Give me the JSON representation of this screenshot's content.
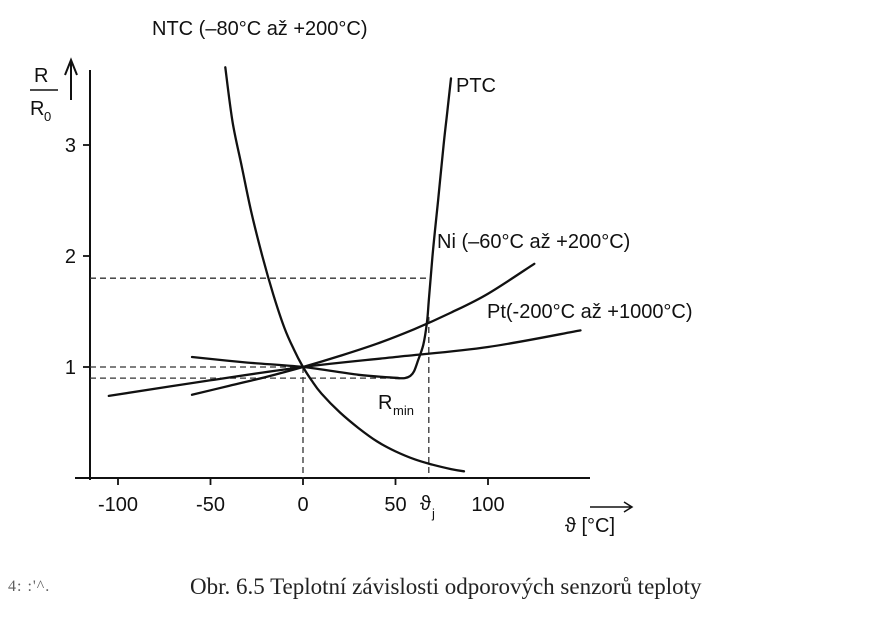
{
  "chart_data": {
    "type": "line",
    "xlabel": "ϑ [°C]",
    "ylabel_top": "R",
    "ylabel_bottom": "R",
    "ylabel_bottom_sub": "0",
    "xlim": [
      -115,
      150
    ],
    "ylim": [
      0,
      3.6
    ],
    "x_ticks": [
      -100,
      -50,
      0,
      50,
      100
    ],
    "y_ticks": [
      1,
      2,
      3
    ],
    "x_tick_labels": [
      "-100",
      "-50",
      "0",
      "50",
      "100"
    ],
    "y_tick_labels": [
      "1",
      "2",
      "3"
    ],
    "theta_j_label": "ϑ",
    "theta_j_sub": "j",
    "theta_j_value": 68,
    "rmin_label": "R",
    "rmin_sub": "min",
    "guide_levels": [
      1.8,
      1.0,
      0.9
    ],
    "series": [
      {
        "name": "NTC (–80°C až +200°C)",
        "x": [
          -42,
          -38,
          -33,
          -28,
          -22,
          -16,
          -10,
          -5,
          0,
          5,
          10,
          20,
          30,
          40,
          50,
          60,
          70,
          80,
          87
        ],
        "y": [
          3.7,
          3.2,
          2.8,
          2.4,
          2.0,
          1.65,
          1.35,
          1.16,
          1.0,
          0.87,
          0.76,
          0.59,
          0.45,
          0.33,
          0.24,
          0.17,
          0.12,
          0.08,
          0.06
        ]
      },
      {
        "name": "PTC",
        "x": [
          50,
          55,
          58,
          60,
          62,
          65,
          67,
          68,
          70,
          73,
          76,
          78,
          80
        ],
        "y": [
          0.9,
          0.9,
          0.92,
          0.96,
          1.05,
          1.2,
          1.4,
          1.6,
          2.0,
          2.5,
          3.0,
          3.3,
          3.6
        ]
      },
      {
        "name": "Ni (–60°C až +200°C)",
        "x": [
          -60,
          -40,
          -20,
          0,
          20,
          40,
          60,
          80,
          100,
          125
        ],
        "y": [
          0.75,
          0.83,
          0.91,
          1.0,
          1.1,
          1.21,
          1.34,
          1.49,
          1.66,
          1.93
        ]
      },
      {
        "name": "Pt(-200°C až +1000°C)",
        "x": [
          -105,
          -50,
          0,
          50,
          100,
          150
        ],
        "y": [
          0.74,
          0.88,
          1.0,
          1.09,
          1.18,
          1.33
        ]
      },
      {
        "name": "",
        "x": [
          -60,
          -30,
          0,
          30,
          52
        ],
        "y": [
          1.09,
          1.04,
          1.0,
          0.93,
          0.9
        ]
      }
    ],
    "labels": {
      "ntc": "NTC (–80°C až +200°C)",
      "ptc": "PTC",
      "ni": "Ni (–60°C až +200°C)",
      "pt": "Pt(-200°C až +1000°C)"
    }
  },
  "caption": "Obr. 6.5  Teplotní závislosti odporových senzorů teploty",
  "caption_prefix": "4: :'^."
}
